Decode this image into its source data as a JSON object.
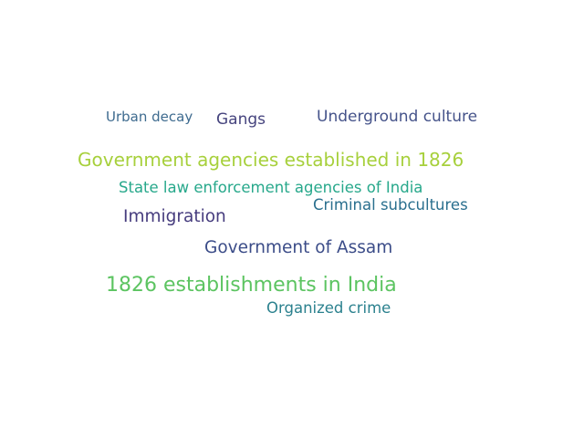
{
  "words": [
    {
      "key": "urban_decay",
      "text": "Urban decay",
      "color": "#3e6b8f"
    },
    {
      "key": "gangs",
      "text": "Gangs",
      "color": "#46447e"
    },
    {
      "key": "underground_culture",
      "text": "Underground culture",
      "color": "#45538a"
    },
    {
      "key": "gov_agencies_1826",
      "text": "Government agencies established in 1826",
      "color": "#a7d03c"
    },
    {
      "key": "state_law",
      "text": "State law enforcement agencies of India",
      "color": "#27a88b"
    },
    {
      "key": "criminal_subcultures",
      "text": "Criminal subcultures",
      "color": "#2a6f8e"
    },
    {
      "key": "immigration",
      "text": "Immigration",
      "color": "#463c7e"
    },
    {
      "key": "gov_assam",
      "text": "Government of Assam",
      "color": "#3b4c88"
    },
    {
      "key": "establishments_1826",
      "text": "1826 establishments in India",
      "color": "#5cc461"
    },
    {
      "key": "organized_crime",
      "text": "Organized crime",
      "color": "#2b818e"
    }
  ]
}
